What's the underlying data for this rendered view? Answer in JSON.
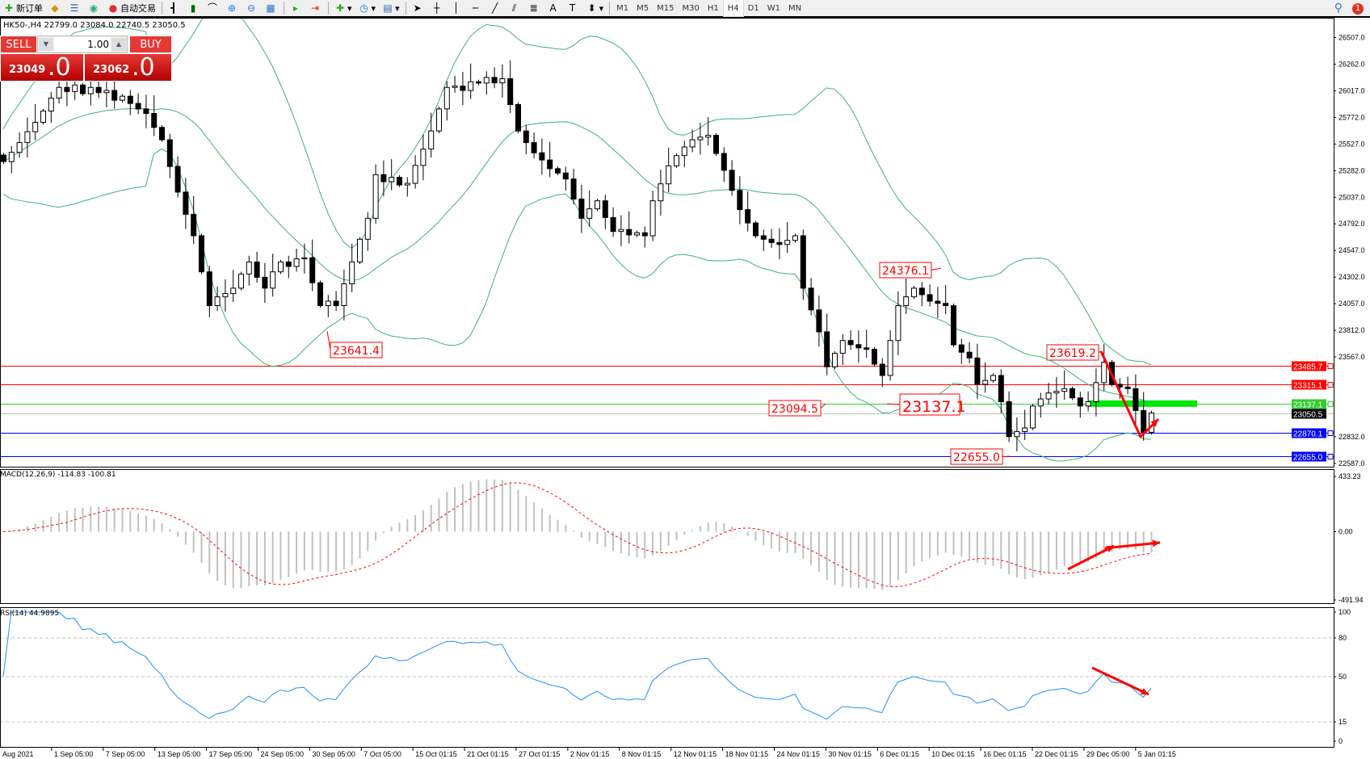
{
  "toolbar": {
    "items": [
      {
        "label": "新订单",
        "icon": "new-order-icon"
      },
      {
        "label": "",
        "icon": "metaeditor-icon"
      },
      {
        "label": "",
        "icon": "data-window-icon"
      },
      {
        "label": "",
        "icon": "signals-icon"
      },
      {
        "label": "自动交易",
        "icon": "autotrading-icon"
      }
    ],
    "tools": [
      "bar-chart-icon",
      "candlestick-icon",
      "line-chart-icon",
      "zoom-in-icon",
      "zoom-out-icon",
      "tile-windows-icon",
      "autoscroll-icon",
      "chart-shift-icon",
      "indicators-icon",
      "periods-icon",
      "templates-icon",
      "cursor-icon",
      "crosshair-icon",
      "vertical-line-icon",
      "horizontal-line-icon",
      "trendline-icon",
      "equidistant-channel-icon",
      "fibonacci-icon",
      "text-icon",
      "text-label-icon",
      "arrows-icon"
    ],
    "text_tool": "A",
    "timeframes": [
      "M1",
      "M5",
      "M15",
      "M30",
      "H1",
      "H4",
      "D1",
      "W1",
      "MN"
    ],
    "active_timeframe": "H4",
    "notification_count": "1"
  },
  "symbol_header": "HK50-,H4  22799.0 23084.0 22740.5 23050.5",
  "trade_panel": {
    "sell_label": "SELL",
    "buy_label": "BUY",
    "lot": "1.00",
    "sell_price_main": "23049",
    "sell_price_big": ".0",
    "buy_price_main": "23062",
    "buy_price_big": ".0",
    "color": "#e53935"
  },
  "price_axis": [
    "26507.0",
    "26262.0",
    "26017.0",
    "25772.0",
    "25527.0",
    "25282.0",
    "25037.0",
    "24792.0",
    "24547.0",
    "24302.0",
    "24057.0",
    "23812.0",
    "23567.0",
    "22832.0",
    "22587.0"
  ],
  "horizontal_lines": [
    {
      "price": 23485.7,
      "label": "23485.7",
      "color": "#ff0000"
    },
    {
      "price": 23315.1,
      "label": "23315.1",
      "color": "#ff0000"
    },
    {
      "price": 23137.1,
      "label": "23137.1",
      "color": "#33cc33"
    },
    {
      "price": 23050.5,
      "label": "23050.5",
      "color": "#000000",
      "line": "#c0c0c0"
    },
    {
      "price": 22870.1,
      "label": "22870.1",
      "color": "#0000ff"
    },
    {
      "price": 22655.0,
      "label": "22655.0",
      "color": "#0000ff"
    }
  ],
  "annotations": [
    {
      "text": "24376.1",
      "size": "normal"
    },
    {
      "text": "23641.4",
      "size": "normal"
    },
    {
      "text": "23094.5",
      "size": "normal"
    },
    {
      "text": "23137.1",
      "size": "large"
    },
    {
      "text": "23619.2",
      "size": "normal"
    },
    {
      "text": "22655.0",
      "size": "normal"
    }
  ],
  "macd": {
    "label": "MACD(12,26,9) -114.83 -100.81",
    "axis": [
      "433.23",
      "0.00",
      "-491.94"
    ],
    "max": 433.23,
    "min": -491.94,
    "histogram_color": "#c0c0c0",
    "signal_color": "#ff0000"
  },
  "rsi": {
    "label": "RSI(14) 44.9895",
    "axis": [
      "100",
      "80",
      "50",
      "15",
      "0"
    ],
    "levels": [
      80,
      50,
      15
    ],
    "color": "#1e90ff"
  },
  "time_axis": [
    "Aug 2021",
    "1 Sep 05:00",
    "7 Sep 05:00",
    "13 Sep 05:00",
    "17 Sep 05:00",
    "24 Sep 05:00",
    "30 Sep 05:00",
    "7 Oct 05:00",
    "15 Oct 01:15",
    "21 Oct 01:15",
    "27 Oct 01:15",
    "2 Nov 01:15",
    "8 Nov 01:15",
    "12 Nov 01:15",
    "18 Nov 01:15",
    "24 Nov 01:15",
    "30 Nov 01:15",
    "6 Dec 01:15",
    "10 Dec 01:15",
    "16 Dec 01:15",
    "22 Dec 01:15",
    "29 Dec 05:00",
    "5 Jan 01:15"
  ],
  "colors": {
    "bollinger": "#3cb371",
    "arrows": "#ff0000",
    "highlight_zone": "#00e600"
  },
  "chart_data": {
    "type": "candlestick",
    "symbol": "HK50-",
    "timeframe": "H4",
    "ylim": [
      22587.0,
      26507.0
    ],
    "last": {
      "open": 22799.0,
      "high": 23084.0,
      "low": 22740.5,
      "close": 23050.5
    },
    "closes": [
      25365,
      25450,
      25540,
      25640,
      25727,
      25830,
      25950,
      26048,
      26010,
      26070,
      25990,
      26048,
      26000,
      26020,
      25930,
      25967,
      25900,
      25850,
      25808,
      25680,
      25566,
      25320,
      25084,
      24880,
      24682,
      24350,
      24039,
      24120,
      24150,
      24200,
      24330,
      24441,
      24300,
      24200,
      24350,
      24441,
      24400,
      24470,
      24480,
      24250,
      24039,
      24080,
      24039,
      24240,
      24441,
      24650,
      24843,
      25245,
      25180,
      25220,
      25150,
      25165,
      25330,
      25480,
      25647,
      25850,
      26048,
      26060,
      26020,
      26100,
      26088,
      26140,
      26090,
      26128,
      25890,
      25647,
      25540,
      25446,
      25380,
      25300,
      25260,
      25205,
      25020,
      24843,
      24930,
      25004,
      24850,
      24722,
      24740,
      24690,
      24710,
      24682,
      25004,
      25160,
      25326,
      25420,
      25500,
      25566,
      25590,
      25607,
      25440,
      25285,
      25100,
      24923,
      24800,
      24682,
      24650,
      24620,
      24602,
      24640,
      24682,
      24200,
      24000,
      23798,
      23476,
      23600,
      23718,
      23680,
      23650,
      23637,
      23500,
      23396,
      23718,
      24039,
      24120,
      24200,
      24140,
      24080,
      24060,
      24039,
      23678,
      23610,
      23557,
      23315,
      23350,
      23396,
      23155,
      22833,
      22880,
      22913,
      23115,
      23180,
      23235,
      23250,
      23275,
      23190,
      23115,
      23155,
      23330,
      23517,
      23315,
      23290,
      23275,
      23074,
      22873,
      23050.5
    ]
  }
}
